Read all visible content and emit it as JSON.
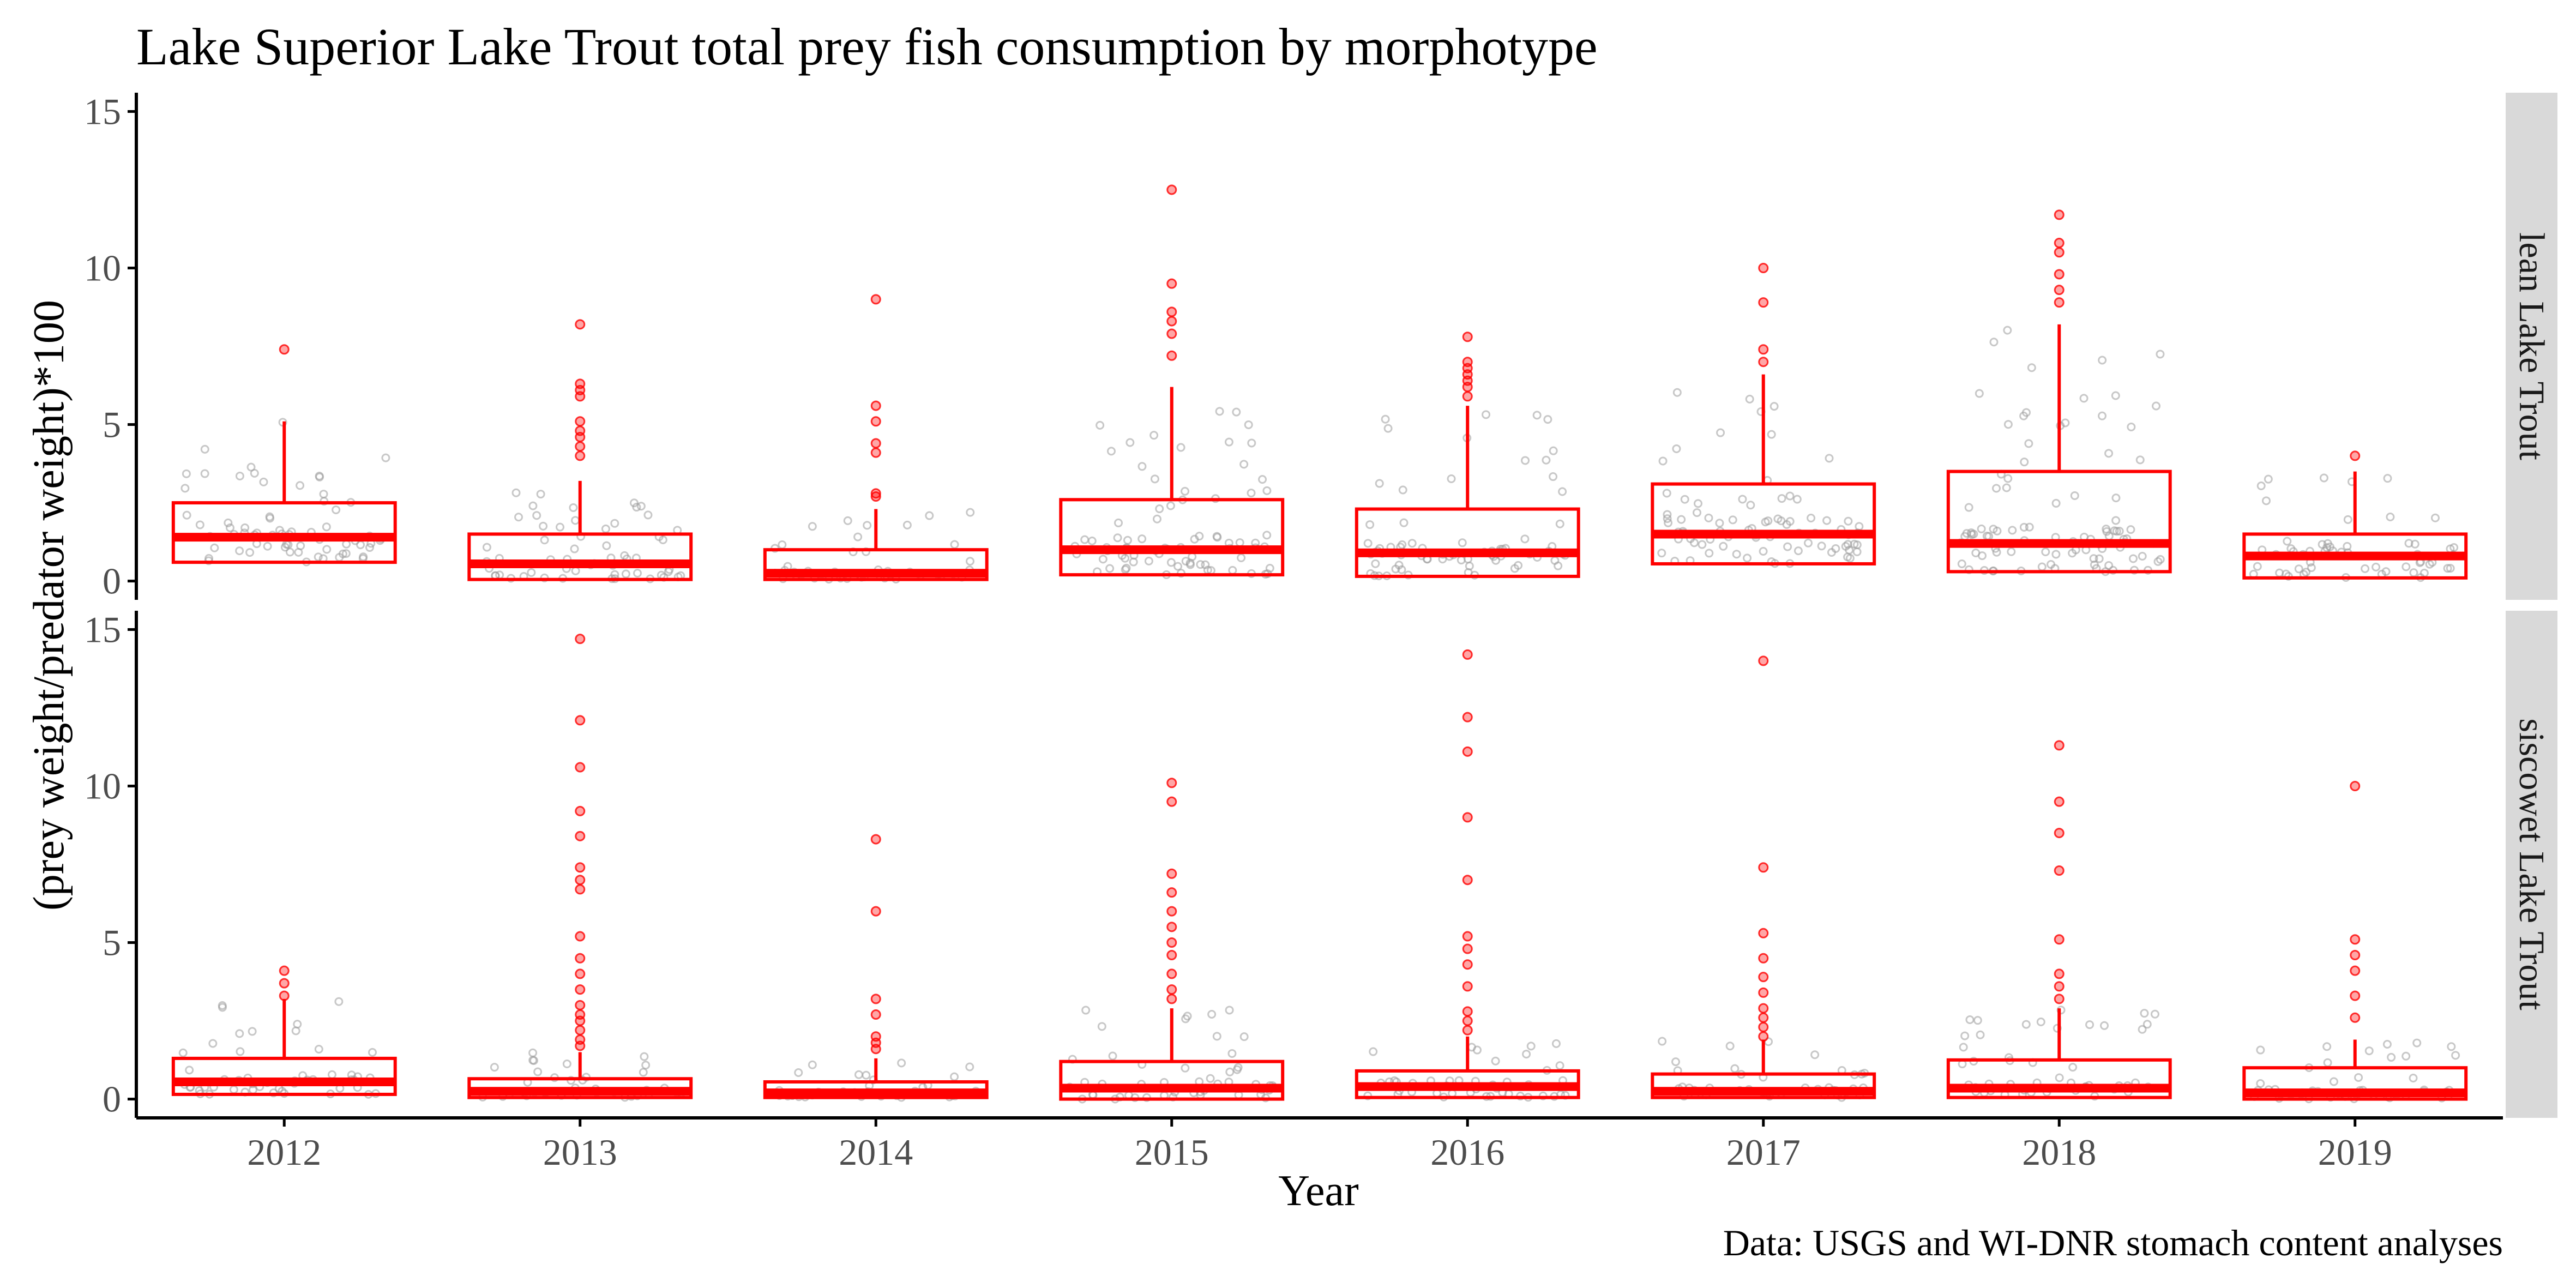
{
  "chart_data": {
    "type": "boxplot",
    "title": "Lake Superior Lake Trout total prey fish consumption by morphotype",
    "xlabel": "Year",
    "ylabel": "(prey weight/predator weight)*100",
    "caption": "Data: USGS and WI-DNR stomach content analyses",
    "categories": [
      "2012",
      "2013",
      "2014",
      "2015",
      "2016",
      "2017",
      "2018",
      "2019"
    ],
    "yticks": [
      "0",
      "5",
      "10",
      "15"
    ],
    "ylim": [
      -0.6,
      15.6
    ],
    "colors": {
      "box": "#ff0000",
      "outlier": "#ff0000",
      "jitter": "#9a9a9a",
      "strip": "#d9d9d9",
      "axis": "#000000"
    },
    "panels": [
      {
        "label": "lean Lake Trout",
        "boxes": [
          {
            "year": "2012",
            "lower": 0.6,
            "q1": 0.6,
            "median": 1.4,
            "q3": 2.5,
            "upper": 5.1,
            "outliers": [
              7.4
            ]
          },
          {
            "year": "2013",
            "lower": 0.05,
            "q1": 0.05,
            "median": 0.55,
            "q3": 1.5,
            "upper": 3.2,
            "outliers": [
              4.0,
              4.3,
              4.6,
              4.8,
              5.1,
              5.9,
              6.1,
              6.3,
              8.2
            ]
          },
          {
            "year": "2014",
            "lower": 0.05,
            "q1": 0.05,
            "median": 0.25,
            "q3": 1.0,
            "upper": 2.3,
            "outliers": [
              2.7,
              2.8,
              4.1,
              4.4,
              5.1,
              5.6,
              9.0
            ]
          },
          {
            "year": "2015",
            "lower": 0.2,
            "q1": 0.2,
            "median": 1.0,
            "q3": 2.6,
            "upper": 6.2,
            "outliers": [
              7.2,
              7.9,
              8.3,
              8.6,
              9.5,
              12.5
            ]
          },
          {
            "year": "2016",
            "lower": 0.15,
            "q1": 0.15,
            "median": 0.9,
            "q3": 2.3,
            "upper": 5.6,
            "outliers": [
              5.9,
              6.2,
              6.4,
              6.6,
              6.8,
              7.0,
              7.8
            ]
          },
          {
            "year": "2017",
            "lower": 0.55,
            "q1": 0.55,
            "median": 1.5,
            "q3": 3.1,
            "upper": 6.6,
            "outliers": [
              7.0,
              7.4,
              8.9,
              10.0
            ]
          },
          {
            "year": "2018",
            "lower": 0.3,
            "q1": 0.3,
            "median": 1.2,
            "q3": 3.5,
            "upper": 8.2,
            "outliers": [
              8.9,
              9.3,
              9.8,
              10.5,
              10.8,
              11.7
            ]
          },
          {
            "year": "2019",
            "lower": 0.1,
            "q1": 0.1,
            "median": 0.8,
            "q3": 1.5,
            "upper": 3.5,
            "outliers": [
              4.0
            ]
          }
        ]
      },
      {
        "label": "siscowet Lake Trout",
        "boxes": [
          {
            "year": "2012",
            "lower": 0.15,
            "q1": 0.15,
            "median": 0.55,
            "q3": 1.3,
            "upper": 3.2,
            "outliers": [
              3.3,
              3.7,
              4.1
            ]
          },
          {
            "year": "2013",
            "lower": 0.05,
            "q1": 0.05,
            "median": 0.25,
            "q3": 0.65,
            "upper": 1.5,
            "outliers": [
              1.7,
              1.9,
              2.2,
              2.5,
              2.7,
              3.0,
              3.5,
              4.0,
              4.5,
              5.2,
              6.7,
              7.0,
              7.4,
              8.4,
              9.2,
              10.6,
              12.1,
              14.7
            ]
          },
          {
            "year": "2014",
            "lower": 0.05,
            "q1": 0.05,
            "median": 0.2,
            "q3": 0.55,
            "upper": 1.3,
            "outliers": [
              1.6,
              1.8,
              2.0,
              2.7,
              3.2,
              6.0,
              8.3
            ]
          },
          {
            "year": "2015",
            "lower": 0.0,
            "q1": 0.0,
            "median": 0.35,
            "q3": 1.2,
            "upper": 2.9,
            "outliers": [
              3.2,
              3.5,
              4.0,
              4.6,
              5.0,
              5.5,
              6.0,
              6.6,
              7.2,
              9.5,
              10.1
            ]
          },
          {
            "year": "2016",
            "lower": 0.05,
            "q1": 0.05,
            "median": 0.4,
            "q3": 0.9,
            "upper": 2.0,
            "outliers": [
              2.2,
              2.5,
              2.8,
              3.6,
              4.3,
              4.8,
              5.2,
              7.0,
              9.0,
              11.1,
              12.2,
              14.2
            ]
          },
          {
            "year": "2017",
            "lower": 0.05,
            "q1": 0.05,
            "median": 0.25,
            "q3": 0.8,
            "upper": 1.9,
            "outliers": [
              2.0,
              2.3,
              2.6,
              2.9,
              3.4,
              3.9,
              4.5,
              5.3,
              7.4,
              14.0
            ]
          },
          {
            "year": "2018",
            "lower": 0.05,
            "q1": 0.05,
            "median": 0.35,
            "q3": 1.25,
            "upper": 2.9,
            "outliers": [
              3.2,
              3.6,
              4.0,
              5.1,
              7.3,
              8.5,
              9.5,
              11.3
            ]
          },
          {
            "year": "2019",
            "lower": 0.0,
            "q1": 0.0,
            "median": 0.2,
            "q3": 1.0,
            "upper": 1.9,
            "outliers": [
              2.6,
              3.3,
              4.1,
              4.6,
              5.1,
              10.0
            ]
          }
        ]
      }
    ]
  }
}
